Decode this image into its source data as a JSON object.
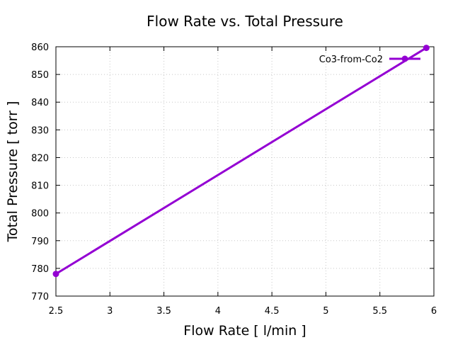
{
  "chart_data": {
    "type": "line",
    "title": "Flow Rate vs. Total Pressure",
    "xlabel": "Flow Rate [ l/min ]",
    "ylabel": "Total Pressure [ torr ]",
    "xlim": [
      2.5,
      6
    ],
    "ylim": [
      770,
      860
    ],
    "xticks": [
      "2.5",
      "3",
      "3.5",
      "4",
      "4.5",
      "5",
      "5.5",
      "6"
    ],
    "xtick_values": [
      2.5,
      3,
      3.5,
      4,
      4.5,
      5,
      5.5,
      6
    ],
    "yticks": [
      "770",
      "780",
      "790",
      "800",
      "810",
      "820",
      "830",
      "840",
      "850",
      "860"
    ],
    "ytick_values": [
      770,
      780,
      790,
      800,
      810,
      820,
      830,
      840,
      850,
      860
    ],
    "grid": true,
    "legend_position": "top-right",
    "series": [
      {
        "name": "Co3-from-Co2",
        "color": "#9400d3",
        "x": [
          2.5,
          5.93
        ],
        "y": [
          778,
          859.6
        ]
      }
    ]
  }
}
